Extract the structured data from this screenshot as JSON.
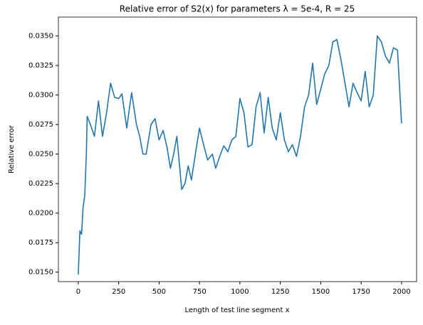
{
  "chart_data": {
    "type": "line",
    "title": "Relative error of S2(x) for parameters λ = 5e-4, R = 25",
    "xlabel": "Length of test line segment x",
    "ylabel": "Relative error",
    "x": [
      0,
      10,
      20,
      30,
      40,
      50,
      55,
      75,
      100,
      125,
      150,
      175,
      200,
      225,
      250,
      270,
      300,
      330,
      360,
      380,
      400,
      420,
      450,
      475,
      500,
      525,
      550,
      570,
      590,
      610,
      640,
      660,
      680,
      700,
      730,
      750,
      775,
      800,
      830,
      850,
      875,
      900,
      925,
      950,
      975,
      1000,
      1025,
      1050,
      1075,
      1100,
      1125,
      1150,
      1175,
      1200,
      1225,
      1250,
      1275,
      1300,
      1325,
      1350,
      1375,
      1400,
      1425,
      1450,
      1475,
      1500,
      1525,
      1550,
      1575,
      1600,
      1625,
      1650,
      1675,
      1700,
      1725,
      1750,
      1775,
      1800,
      1825,
      1850,
      1875,
      1900,
      1925,
      1950,
      1975,
      2000
    ],
    "series": [
      {
        "name": "S2",
        "color": "#1f77b4",
        "values": [
          0.0148,
          0.0185,
          0.0182,
          0.0205,
          0.0215,
          0.025,
          0.0282,
          0.0275,
          0.0265,
          0.0295,
          0.0265,
          0.0285,
          0.031,
          0.0298,
          0.0297,
          0.0301,
          0.0272,
          0.0302,
          0.0275,
          0.0265,
          0.025,
          0.025,
          0.0275,
          0.028,
          0.0262,
          0.027,
          0.0255,
          0.0238,
          0.025,
          0.0265,
          0.022,
          0.0225,
          0.024,
          0.0228,
          0.0255,
          0.0272,
          0.0258,
          0.0245,
          0.025,
          0.0238,
          0.0248,
          0.0257,
          0.0252,
          0.0262,
          0.0265,
          0.0297,
          0.0285,
          0.0256,
          0.0258,
          0.029,
          0.0302,
          0.0268,
          0.0298,
          0.0272,
          0.0262,
          0.0285,
          0.0262,
          0.0252,
          0.0258,
          0.0248,
          0.0265,
          0.029,
          0.03,
          0.0327,
          0.0292,
          0.0305,
          0.0318,
          0.0325,
          0.0345,
          0.0347,
          0.033,
          0.031,
          0.029,
          0.031,
          0.0302,
          0.0295,
          0.032,
          0.029,
          0.03,
          0.035,
          0.0345,
          0.0333,
          0.0327,
          0.034,
          0.0338,
          0.0276
        ]
      }
    ],
    "xlim": [
      -123,
      2093
    ],
    "ylim": [
      0.0142,
      0.0366
    ],
    "xticks": [
      0,
      250,
      500,
      750,
      1000,
      1250,
      1500,
      1750,
      2000
    ],
    "yticks": [
      {
        "value": 0.015,
        "label": "0.0150"
      },
      {
        "value": 0.0175,
        "label": "0.0175"
      },
      {
        "value": 0.02,
        "label": "0.0200"
      },
      {
        "value": 0.0225,
        "label": "0.0225"
      },
      {
        "value": 0.025,
        "label": "0.0250"
      },
      {
        "value": 0.0275,
        "label": "0.0275"
      },
      {
        "value": 0.03,
        "label": "0.0300"
      },
      {
        "value": 0.0325,
        "label": "0.0325"
      },
      {
        "value": 0.035,
        "label": "0.0350"
      }
    ]
  }
}
